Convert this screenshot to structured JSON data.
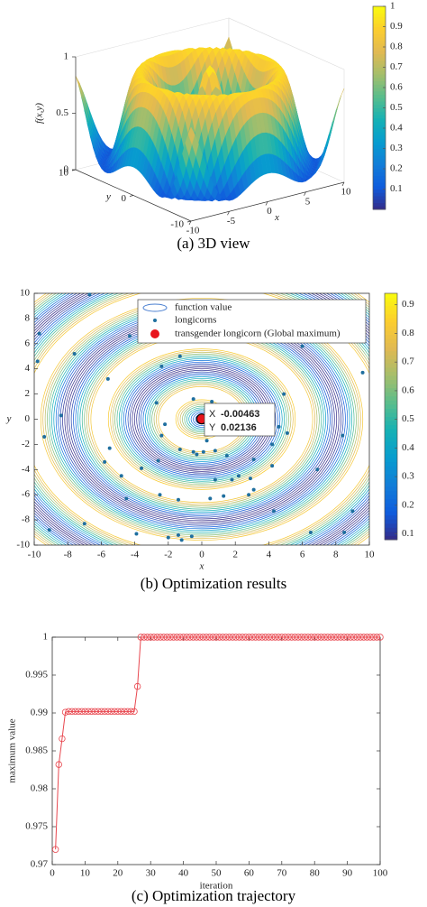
{
  "chart_data": [
    {
      "type": "surface3d",
      "caption": "(a) 3D view",
      "xlabel": "x",
      "ylabel": "y",
      "zlabel": "f(x,y)",
      "xlim": [
        -10,
        10
      ],
      "ylim": [
        -10,
        10
      ],
      "zlim": [
        0,
        1
      ],
      "xticks": [
        -10,
        -5,
        0,
        5,
        10
      ],
      "yticks": [
        -10,
        0,
        10
      ],
      "zticks": [
        0,
        0.5,
        1
      ],
      "clim": [
        0,
        1
      ],
      "colorbar_ticks": [
        0.1,
        0.2,
        0.3,
        0.4,
        0.5,
        0.6,
        0.7,
        0.8,
        0.9,
        1
      ]
    },
    {
      "type": "contour_scatter",
      "caption": "(b) Optimization results",
      "xlabel": "x",
      "ylabel": "y",
      "xlim": [
        -10,
        10
      ],
      "ylim": [
        -10,
        10
      ],
      "xticks": [
        -10,
        -8,
        -6,
        -4,
        -2,
        0,
        2,
        4,
        6,
        8,
        10
      ],
      "yticks": [
        -10,
        -8,
        -6,
        -4,
        -2,
        0,
        2,
        4,
        6,
        8,
        10
      ],
      "clim": [
        0.08,
        0.94
      ],
      "colorbar_ticks": [
        0.1,
        0.2,
        0.3,
        0.4,
        0.5,
        0.6,
        0.7,
        0.8,
        0.9
      ],
      "contour_name": "function value",
      "series": [
        {
          "name": "longicorns",
          "color": "#1f6f9f",
          "x": [
            -6.7,
            -9.7,
            -7.6,
            -4.3,
            -9.8,
            -5.6,
            -8.4,
            -5.5,
            -9.4,
            -2.4,
            -5.8,
            -4.8,
            -4.5,
            -2.5,
            -9.1,
            -7.0,
            -1.4,
            -1.2,
            -0.6,
            -2.0,
            -3.9,
            -2.6,
            -2.2,
            -2.7,
            -2.4,
            -1.3,
            -0.5,
            0.6,
            0.3,
            -1.3,
            -0.3,
            1.5,
            0.1,
            -0.5,
            0.8,
            1.8,
            3.1,
            2.8,
            1.3,
            0.5,
            -1.4,
            2.2,
            2.9,
            4.2,
            4.2,
            4.6,
            5.1,
            4.9,
            6.0,
            7.0,
            9.6,
            8.4,
            6.9,
            4.3,
            6.5,
            9.0,
            8.5,
            1.9,
            3.1,
            0.8,
            -3.6
          ],
          "values": [
            9.9,
            6.8,
            5.2,
            6.6,
            4.6,
            3.2,
            0.3,
            -2.3,
            -1.4,
            -1.3,
            -3.4,
            -4.5,
            -6.3,
            -6.0,
            -8.8,
            -8.3,
            -9.2,
            -9.6,
            -9.3,
            -9.4,
            -9.1,
            -3.3,
            -0.4,
            1.3,
            4.2,
            5.0,
            1.6,
            1.4,
            -1.7,
            -2.4,
            -2.8,
            -2.9,
            -2.6,
            -2.6,
            -2.5,
            -4.8,
            -5.6,
            -6.0,
            -6.1,
            -6.3,
            -6.4,
            -4.5,
            -4.7,
            -2.0,
            -3.7,
            -0.6,
            -1.1,
            2.0,
            5.8,
            6.7,
            3.7,
            -1.3,
            -4.0,
            -7.3,
            -9.0,
            -7.3,
            -9.0,
            -0.4,
            -3.2,
            -4.8,
            -3.9
          ]
        },
        {
          "name": "transgender longicorn (Global maximum)",
          "color": "#e8141c",
          "x": [
            -0.00463
          ],
          "values": [
            0.02136
          ]
        }
      ],
      "datatip": {
        "x_label": "X",
        "x": -0.00463,
        "y_label": "Y",
        "y": 0.02136
      }
    },
    {
      "type": "line",
      "caption": "(c) Optimization trajectory",
      "xlabel": "iteration",
      "ylabel": "maximum value",
      "xlim": [
        0,
        100
      ],
      "ylim": [
        0.97,
        1
      ],
      "xticks": [
        0,
        10,
        20,
        30,
        40,
        50,
        60,
        70,
        80,
        90,
        100
      ],
      "yticks": [
        0.97,
        0.975,
        0.98,
        0.985,
        0.99,
        0.995,
        1
      ],
      "x": [
        1,
        2,
        3,
        4,
        5,
        6,
        7,
        8,
        9,
        10,
        11,
        12,
        13,
        14,
        15,
        16,
        17,
        18,
        19,
        20,
        21,
        22,
        23,
        24,
        25,
        26,
        27,
        28,
        29,
        30,
        31,
        32,
        33,
        34,
        35,
        36,
        37,
        38,
        39,
        40,
        41,
        42,
        43,
        44,
        45,
        46,
        47,
        48,
        49,
        50,
        51,
        52,
        53,
        54,
        55,
        56,
        57,
        58,
        59,
        60,
        61,
        62,
        63,
        64,
        65,
        66,
        67,
        68,
        69,
        70,
        71,
        72,
        73,
        74,
        75,
        76,
        77,
        78,
        79,
        80,
        81,
        82,
        83,
        84,
        85,
        86,
        87,
        88,
        89,
        90,
        91,
        92,
        93,
        94,
        95,
        96,
        97,
        98,
        99,
        100
      ],
      "series": [
        {
          "name": "maximum value",
          "color": "#e8474f",
          "values": [
            0.972,
            0.9832,
            0.9866,
            0.9901,
            0.9902,
            0.9902,
            0.9902,
            0.9902,
            0.9902,
            0.9902,
            0.9902,
            0.9902,
            0.9902,
            0.9902,
            0.9902,
            0.9902,
            0.9902,
            0.9902,
            0.9902,
            0.9902,
            0.9902,
            0.9902,
            0.9902,
            0.9902,
            0.9902,
            0.9935,
            1,
            1,
            1,
            1,
            1,
            1,
            1,
            1,
            1,
            1,
            1,
            1,
            1,
            1,
            1,
            1,
            1,
            1,
            1,
            1,
            1,
            1,
            1,
            1,
            1,
            1,
            1,
            1,
            1,
            1,
            1,
            1,
            1,
            1,
            1,
            1,
            1,
            1,
            1,
            1,
            1,
            1,
            1,
            1,
            1,
            1,
            1,
            1,
            1,
            1,
            1,
            1,
            1,
            1,
            1,
            1,
            1,
            1,
            1,
            1,
            1,
            1,
            1,
            1,
            1,
            1,
            1,
            1,
            1,
            1,
            1,
            1,
            1,
            1
          ]
        }
      ]
    }
  ]
}
